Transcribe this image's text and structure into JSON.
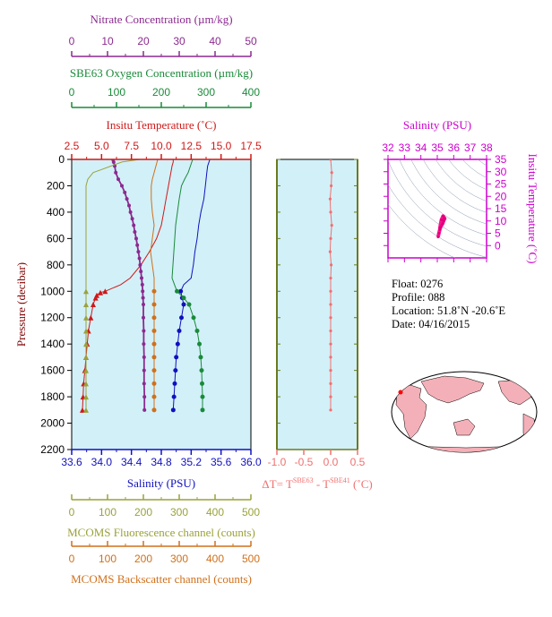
{
  "colors": {
    "nitrate": "#8b2a8f",
    "oxygen": "#1a8a3a",
    "temperature": "#d01818",
    "salinity": "#1010c0",
    "fluorescence": "#9aa23a",
    "backscatter": "#d0701a",
    "delta_t": "#f07070",
    "plot_bg": "#d2f0f8",
    "ts_axis": "#cc00cc",
    "land": "#f4b0b8"
  },
  "info": {
    "float": "Float:  0276",
    "profile": "Profile:  088",
    "location": "Location:  51.8˚N  -20.6˚E",
    "date": "Date:  04/16/2015"
  },
  "footer_text": "",
  "chart_data": [
    {
      "type": "line",
      "panel": "main-profile",
      "ylabel": "Pressure (decibar)",
      "ylim": [
        2200,
        0
      ],
      "yticks": [
        0,
        200,
        400,
        600,
        800,
        1000,
        1200,
        1400,
        1600,
        1800,
        2000,
        2200
      ],
      "axes": {
        "nitrate": {
          "title": "Nitrate Concentration (µm/kg)",
          "range": [
            0,
            50
          ],
          "ticks": [
            "0",
            "10",
            "20",
            "30",
            "40",
            "50"
          ]
        },
        "oxygen": {
          "title": "SBE63 Oxygen Concentration (µm/kg)",
          "range": [
            0,
            400
          ],
          "ticks": [
            "0",
            "100",
            "200",
            "300",
            "400"
          ]
        },
        "temperature": {
          "title": "Insitu Temperature (˚C)",
          "range": [
            2.5,
            17.5
          ],
          "ticks": [
            "2.5",
            "5.0",
            "7.5",
            "10.0",
            "12.5",
            "15.0",
            "17.5"
          ]
        },
        "salinity": {
          "title": "Salinity (PSU)",
          "range": [
            33.6,
            36.0
          ],
          "ticks": [
            "33.6",
            "34.0",
            "34.4",
            "34.8",
            "35.2",
            "35.6",
            "36.0"
          ]
        },
        "fluorescence": {
          "title": "MCOMS Fluorescence channel (counts)",
          "range": [
            0,
            500
          ],
          "ticks": [
            "0",
            "100",
            "200",
            "300",
            "400",
            "500"
          ]
        },
        "backscatter": {
          "title": "MCOMS Backscatter channel (counts)",
          "range": [
            0,
            500
          ],
          "ticks": [
            "0",
            "100",
            "200",
            "300",
            "400",
            "500"
          ]
        }
      },
      "series": [
        {
          "key": "temperature",
          "pressure": [
            0,
            20,
            50,
            100,
            150,
            200,
            300,
            400,
            500,
            600,
            700,
            800,
            900,
            950,
            1000,
            1010,
            1030,
            1050,
            1100,
            1200,
            1300,
            1400,
            1500,
            1600,
            1700,
            1800,
            1900
          ],
          "values": [
            11.0,
            11.0,
            10.9,
            10.8,
            10.7,
            10.6,
            10.4,
            10.2,
            10.0,
            9.6,
            9.0,
            8.3,
            7.4,
            6.6,
            5.3,
            4.9,
            4.6,
            4.5,
            4.3,
            4.1,
            3.9,
            3.8,
            3.7,
            3.6,
            3.5,
            3.45,
            3.4
          ],
          "markers_from": 1000
        },
        {
          "key": "salinity",
          "pressure": [
            0,
            50,
            100,
            150,
            200,
            300,
            400,
            500,
            600,
            700,
            800,
            900,
            950,
            1000,
            1050,
            1100,
            1200,
            1300,
            1400,
            1500,
            1600,
            1700,
            1800,
            1900
          ],
          "values": [
            35.45,
            35.42,
            35.41,
            35.4,
            35.39,
            35.37,
            35.33,
            35.3,
            35.28,
            35.25,
            35.23,
            35.2,
            35.1,
            35.06,
            35.08,
            35.1,
            35.07,
            35.04,
            35.02,
            35.0,
            34.99,
            34.98,
            34.97,
            34.96
          ],
          "markers_from": 1000
        },
        {
          "key": "oxygen",
          "pressure": [
            0,
            50,
            100,
            150,
            200,
            300,
            400,
            500,
            600,
            700,
            800,
            900,
            1000,
            1050,
            1100,
            1200,
            1300,
            1400,
            1500,
            1600,
            1700,
            1800,
            1900
          ],
          "values": [
            270,
            265,
            260,
            252,
            245,
            240,
            236,
            232,
            230,
            228,
            226,
            224,
            235,
            250,
            262,
            272,
            280,
            285,
            288,
            290,
            291,
            292,
            292
          ],
          "markers_from": 1000
        },
        {
          "key": "nitrate",
          "pressure": [
            0,
            20,
            50,
            100,
            150,
            200,
            250,
            300,
            350,
            400,
            450,
            500,
            550,
            600,
            650,
            700,
            750,
            800,
            850,
            900,
            950,
            1000,
            1050,
            1100,
            1200,
            1300,
            1400,
            1500,
            1600,
            1700,
            1800,
            1900
          ],
          "values": [
            11.5,
            11.7,
            12.0,
            12.3,
            13.0,
            14.0,
            14.8,
            15.4,
            16.0,
            16.4,
            16.9,
            17.3,
            17.6,
            18.0,
            18.3,
            18.6,
            18.9,
            19.1,
            19.3,
            19.5,
            19.7,
            19.8,
            19.9,
            20.0,
            20.0,
            20.1,
            20.1,
            20.2,
            20.2,
            20.2,
            20.3,
            20.3
          ],
          "markers_from": 0
        },
        {
          "key": "fluorescence",
          "pressure": [
            0,
            20,
            50,
            80,
            100,
            150,
            200,
            300,
            400,
            500,
            600,
            700,
            800,
            900,
            1000,
            1100,
            1200,
            1300,
            1400,
            1500,
            1600,
            1700,
            1800,
            1900
          ],
          "values": [
            190,
            140,
            110,
            80,
            60,
            45,
            40,
            40,
            40,
            40,
            40,
            40,
            40,
            40,
            40,
            40,
            40,
            40,
            40,
            40,
            40,
            40,
            40,
            40
          ],
          "markers_from": 1000
        },
        {
          "key": "backscatter",
          "pressure": [
            0,
            50,
            100,
            150,
            200,
            300,
            400,
            500,
            600,
            700,
            800,
            900,
            1000,
            1100,
            1200,
            1300,
            1400,
            1500,
            1600,
            1700,
            1800,
            1900
          ],
          "values": [
            240,
            235,
            230,
            225,
            222,
            222,
            225,
            230,
            225,
            220,
            225,
            230,
            230,
            230,
            230,
            230,
            230,
            230,
            230,
            230,
            230,
            230
          ],
          "markers_from": 1000
        }
      ]
    },
    {
      "type": "line",
      "panel": "delta-t",
      "xlabel": "ΔT= T",
      "xlabel_sup1": "SBE63",
      "xlabel_mid": " - T",
      "xlabel_sup2": "SBE41",
      "xlabel_end": " (˚C)",
      "xlim": [
        -1.0,
        0.5
      ],
      "xticks": [
        "-1.0",
        "-0.5",
        "0.0",
        "0.5"
      ],
      "ylim": [
        2200,
        0
      ],
      "pressure": [
        0,
        100,
        200,
        300,
        400,
        500,
        600,
        700,
        800,
        900,
        1000,
        1100,
        1200,
        1300,
        1400,
        1500,
        1600,
        1700,
        1800,
        1900
      ],
      "values": [
        0.0,
        0.02,
        0.01,
        -0.01,
        0.0,
        0.02,
        0.0,
        -0.01,
        0.01,
        0.0,
        0.0,
        0.0,
        0.0,
        0.0,
        0.0,
        0.0,
        0.0,
        0.0,
        0.0,
        0.0
      ]
    },
    {
      "type": "scatter",
      "panel": "ts-diagram",
      "title": "Salinity (PSU)",
      "ylabel": "Insitu Temperature (˚C)",
      "xlim": [
        32,
        38
      ],
      "ylim": [
        -5,
        35
      ],
      "xticks": [
        "32",
        "33",
        "34",
        "35",
        "36",
        "37",
        "38"
      ],
      "yticks": [
        "0",
        "5",
        "10",
        "15",
        "20",
        "25",
        "30",
        "35"
      ],
      "points": [
        [
          35.05,
          3.5
        ],
        [
          35.1,
          5.0
        ],
        [
          35.15,
          6.5
        ],
        [
          35.2,
          7.5
        ],
        [
          35.28,
          8.5
        ],
        [
          35.33,
          9.0
        ],
        [
          35.38,
          10.0
        ],
        [
          35.42,
          10.6
        ],
        [
          35.45,
          11.0
        ],
        [
          35.4,
          11.5
        ],
        [
          35.35,
          12.0
        ],
        [
          35.25,
          10.5
        ],
        [
          35.15,
          7.0
        ]
      ]
    }
  ]
}
